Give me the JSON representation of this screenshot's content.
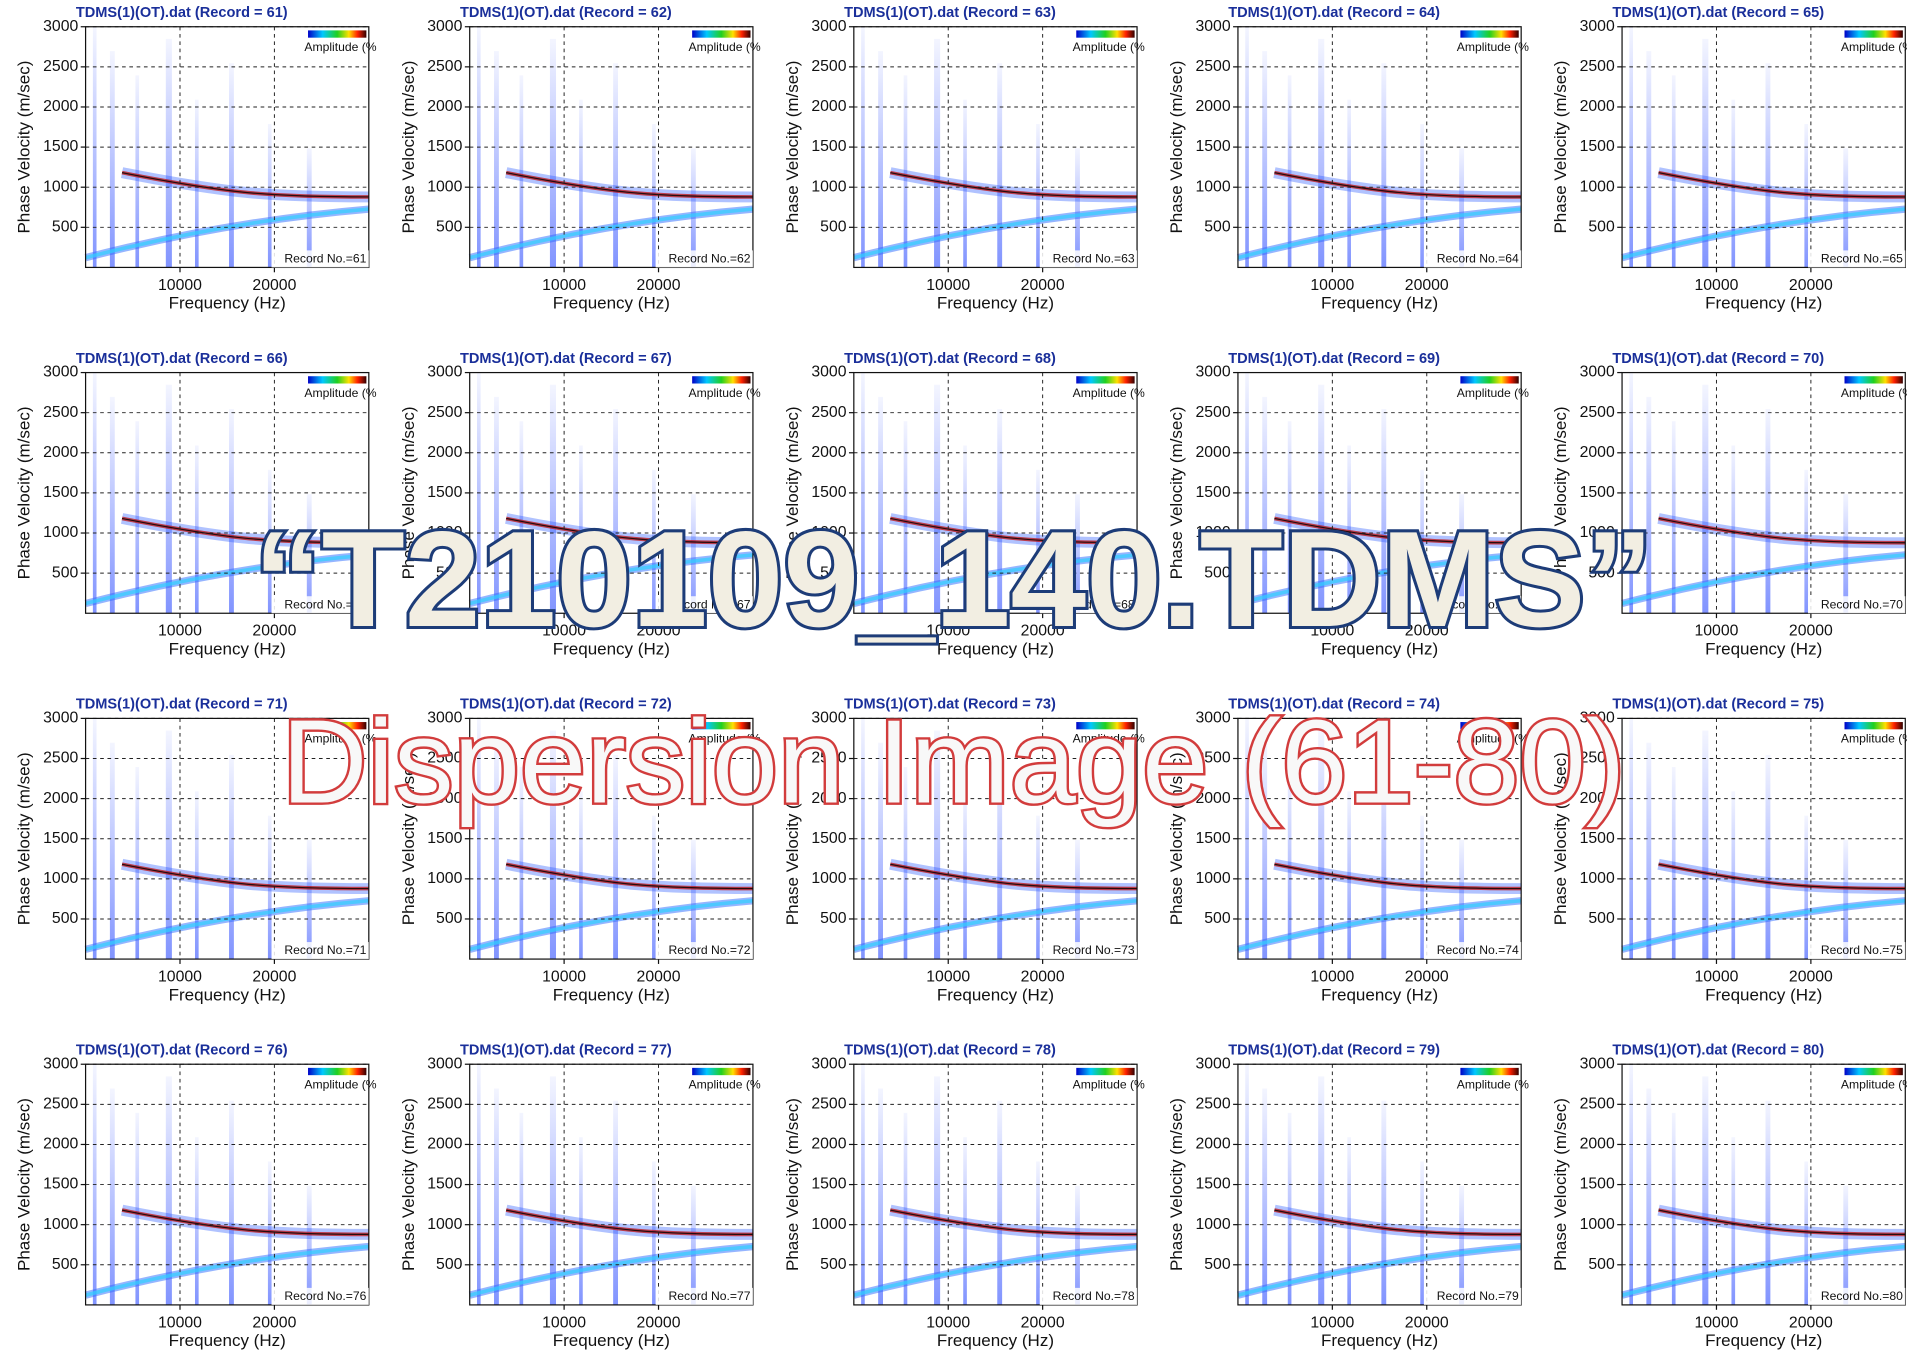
{
  "chart_data": [
    {
      "type": "heatmap",
      "title": "TDMS(1)(OT).dat (Record = 61)",
      "x_label": "Frequency (Hz)",
      "y_label": "Phase Velocity (m/sec)",
      "xlim": [
        0,
        30000
      ],
      "xticks": [
        10000,
        20000
      ],
      "ylim": [
        0,
        3000
      ],
      "yticks": [
        500,
        1000,
        1500,
        2000,
        2500,
        3000
      ],
      "grid": true,
      "legend_label": "Amplitude (%",
      "annotation": "Record No.=61"
    },
    {
      "type": "heatmap",
      "title": "TDMS(1)(OT).dat (Record = 62)",
      "x_label": "Frequency (Hz)",
      "y_label": "Phase Velocity (m/sec)",
      "xlim": [
        0,
        30000
      ],
      "xticks": [
        10000,
        20000
      ],
      "ylim": [
        0,
        3000
      ],
      "yticks": [
        500,
        1000,
        1500,
        2000,
        2500,
        3000
      ],
      "grid": true,
      "legend_label": "Amplitude (%",
      "annotation": "Record No.=62"
    },
    {
      "type": "heatmap",
      "title": "TDMS(1)(OT).dat (Record = 63)",
      "x_label": "Frequency (Hz)",
      "y_label": "Phase Velocity (m/sec)",
      "xlim": [
        0,
        30000
      ],
      "xticks": [
        10000,
        20000
      ],
      "ylim": [
        0,
        3000
      ],
      "yticks": [
        500,
        1000,
        1500,
        2000,
        2500,
        3000
      ],
      "grid": true,
      "legend_label": "Amplitude (%",
      "annotation": "Record No.=63"
    },
    {
      "type": "heatmap",
      "title": "TDMS(1)(OT).dat (Record = 64)",
      "x_label": "Frequency (Hz)",
      "y_label": "Phase Velocity (m/sec)",
      "xlim": [
        0,
        30000
      ],
      "xticks": [
        10000,
        20000
      ],
      "ylim": [
        0,
        3000
      ],
      "yticks": [
        500,
        1000,
        1500,
        2000,
        2500,
        3000
      ],
      "grid": true,
      "legend_label": "Amplitude (%",
      "annotation": "Record No.=64"
    },
    {
      "type": "heatmap",
      "title": "TDMS(1)(OT).dat (Record = 65)",
      "x_label": "Frequency (Hz)",
      "y_label": "Phase Velocity (m/sec)",
      "xlim": [
        0,
        30000
      ],
      "xticks": [
        10000,
        20000
      ],
      "ylim": [
        0,
        3000
      ],
      "yticks": [
        500,
        1000,
        1500,
        2000,
        2500,
        3000
      ],
      "grid": true,
      "legend_label": "Amplitude (%",
      "annotation": "Record No.=65"
    },
    {
      "type": "heatmap",
      "title": "TDMS(1)(OT).dat (Record = 66)",
      "x_label": "Frequency (Hz)",
      "y_label": "Phase Velocity (m/sec)",
      "xlim": [
        0,
        30000
      ],
      "xticks": [
        10000,
        20000
      ],
      "ylim": [
        0,
        3000
      ],
      "yticks": [
        500,
        1000,
        1500,
        2000,
        2500,
        3000
      ],
      "grid": true,
      "legend_label": "Amplitude (%",
      "annotation": "Record No.=66"
    },
    {
      "type": "heatmap",
      "title": "TDMS(1)(OT).dat (Record = 67)",
      "x_label": "Frequency (Hz)",
      "y_label": "Phase Velocity (m/sec)",
      "xlim": [
        0,
        30000
      ],
      "xticks": [
        10000,
        20000
      ],
      "ylim": [
        0,
        3000
      ],
      "yticks": [
        500,
        1000,
        1500,
        2000,
        2500,
        3000
      ],
      "grid": true,
      "legend_label": "Amplitude (%",
      "annotation": "Record No.=67"
    },
    {
      "type": "heatmap",
      "title": "TDMS(1)(OT).dat (Record = 68)",
      "x_label": "Frequency (Hz)",
      "y_label": "Phase Velocity (m/sec)",
      "xlim": [
        0,
        30000
      ],
      "xticks": [
        10000,
        20000
      ],
      "ylim": [
        0,
        3000
      ],
      "yticks": [
        500,
        1000,
        1500,
        2000,
        2500,
        3000
      ],
      "grid": true,
      "legend_label": "Amplitude (%",
      "annotation": "Record No.=68"
    },
    {
      "type": "heatmap",
      "title": "TDMS(1)(OT).dat (Record = 69)",
      "x_label": "Frequency (Hz)",
      "y_label": "Phase Velocity (m/sec)",
      "xlim": [
        0,
        30000
      ],
      "xticks": [
        10000,
        20000
      ],
      "ylim": [
        0,
        3000
      ],
      "yticks": [
        500,
        1000,
        1500,
        2000,
        2500,
        3000
      ],
      "grid": true,
      "legend_label": "Amplitude (%",
      "annotation": "Record No.=69"
    },
    {
      "type": "heatmap",
      "title": "TDMS(1)(OT).dat (Record = 70)",
      "x_label": "Frequency (Hz)",
      "y_label": "Phase Velocity (m/sec)",
      "xlim": [
        0,
        30000
      ],
      "xticks": [
        10000,
        20000
      ],
      "ylim": [
        0,
        3000
      ],
      "yticks": [
        500,
        1000,
        1500,
        2000,
        2500,
        3000
      ],
      "grid": true,
      "legend_label": "Amplitude (%",
      "annotation": "Record No.=70"
    },
    {
      "type": "heatmap",
      "title": "TDMS(1)(OT).dat (Record = 71)",
      "x_label": "Frequency (Hz)",
      "y_label": "Phase Velocity (m/sec)",
      "xlim": [
        0,
        30000
      ],
      "xticks": [
        10000,
        20000
      ],
      "ylim": [
        0,
        3000
      ],
      "yticks": [
        500,
        1000,
        1500,
        2000,
        2500,
        3000
      ],
      "grid": true,
      "legend_label": "Amplitude (%",
      "annotation": "Record No.=71"
    },
    {
      "type": "heatmap",
      "title": "TDMS(1)(OT).dat (Record = 72)",
      "x_label": "Frequency (Hz)",
      "y_label": "Phase Velocity (m/sec)",
      "xlim": [
        0,
        30000
      ],
      "xticks": [
        10000,
        20000
      ],
      "ylim": [
        0,
        3000
      ],
      "yticks": [
        500,
        1000,
        1500,
        2000,
        2500,
        3000
      ],
      "grid": true,
      "legend_label": "Amplitude (%",
      "annotation": "Record No.=72"
    },
    {
      "type": "heatmap",
      "title": "TDMS(1)(OT).dat (Record = 73)",
      "x_label": "Frequency (Hz)",
      "y_label": "Phase Velocity (m/sec)",
      "xlim": [
        0,
        30000
      ],
      "xticks": [
        10000,
        20000
      ],
      "ylim": [
        0,
        3000
      ],
      "yticks": [
        500,
        1000,
        1500,
        2000,
        2500,
        3000
      ],
      "grid": true,
      "legend_label": "Amplitude (%",
      "annotation": "Record No.=73"
    },
    {
      "type": "heatmap",
      "title": "TDMS(1)(OT).dat (Record = 74)",
      "x_label": "Frequency (Hz)",
      "y_label": "Phase Velocity (m/sec)",
      "xlim": [
        0,
        30000
      ],
      "xticks": [
        10000,
        20000
      ],
      "ylim": [
        0,
        3000
      ],
      "yticks": [
        500,
        1000,
        1500,
        2000,
        2500,
        3000
      ],
      "grid": true,
      "legend_label": "Amplitude (%",
      "annotation": "Record No.=74"
    },
    {
      "type": "heatmap",
      "title": "TDMS(1)(OT).dat (Record = 75)",
      "x_label": "Frequency (Hz)",
      "y_label": "Phase Velocity (m/sec)",
      "xlim": [
        0,
        30000
      ],
      "xticks": [
        10000,
        20000
      ],
      "ylim": [
        0,
        3000
      ],
      "yticks": [
        500,
        1000,
        1500,
        2000,
        2500,
        3000
      ],
      "grid": true,
      "legend_label": "Amplitude (%",
      "annotation": "Record No.=75"
    },
    {
      "type": "heatmap",
      "title": "TDMS(1)(OT).dat (Record = 76)",
      "x_label": "Frequency (Hz)",
      "y_label": "Phase Velocity (m/sec)",
      "xlim": [
        0,
        30000
      ],
      "xticks": [
        10000,
        20000
      ],
      "ylim": [
        0,
        3000
      ],
      "yticks": [
        500,
        1000,
        1500,
        2000,
        2500,
        3000
      ],
      "grid": true,
      "legend_label": "Amplitude (%",
      "annotation": "Record No.=76"
    },
    {
      "type": "heatmap",
      "title": "TDMS(1)(OT).dat (Record = 77)",
      "x_label": "Frequency (Hz)",
      "y_label": "Phase Velocity (m/sec)",
      "xlim": [
        0,
        30000
      ],
      "xticks": [
        10000,
        20000
      ],
      "ylim": [
        0,
        3000
      ],
      "yticks": [
        500,
        1000,
        1500,
        2000,
        2500,
        3000
      ],
      "grid": true,
      "legend_label": "Amplitude (%",
      "annotation": "Record No.=77"
    },
    {
      "type": "heatmap",
      "title": "TDMS(1)(OT).dat (Record = 78)",
      "x_label": "Frequency (Hz)",
      "y_label": "Phase Velocity (m/sec)",
      "xlim": [
        0,
        30000
      ],
      "xticks": [
        10000,
        20000
      ],
      "ylim": [
        0,
        3000
      ],
      "yticks": [
        500,
        1000,
        1500,
        2000,
        2500,
        3000
      ],
      "grid": true,
      "legend_label": "Amplitude (%",
      "annotation": "Record No.=78"
    },
    {
      "type": "heatmap",
      "title": "TDMS(1)(OT).dat (Record = 79)",
      "x_label": "Frequency (Hz)",
      "y_label": "Phase Velocity (m/sec)",
      "xlim": [
        0,
        30000
      ],
      "xticks": [
        10000,
        20000
      ],
      "ylim": [
        0,
        3000
      ],
      "yticks": [
        500,
        1000,
        1500,
        2000,
        2500,
        3000
      ],
      "grid": true,
      "legend_label": "Amplitude (%",
      "annotation": "Record No.=79"
    },
    {
      "type": "heatmap",
      "title": "TDMS(1)(OT).dat (Record = 80)",
      "x_label": "Frequency (Hz)",
      "y_label": "Phase Velocity (m/sec)",
      "xlim": [
        0,
        30000
      ],
      "xticks": [
        10000,
        20000
      ],
      "ylim": [
        0,
        3000
      ],
      "yticks": [
        500,
        1000,
        1500,
        2000,
        2500,
        3000
      ],
      "grid": true,
      "legend_label": "Amplitude (%",
      "annotation": "Record No.=80"
    }
  ],
  "overlay": {
    "title": "“T210109_140.TDMS”",
    "subtitle": "Dispersion Image (61-80)"
  }
}
